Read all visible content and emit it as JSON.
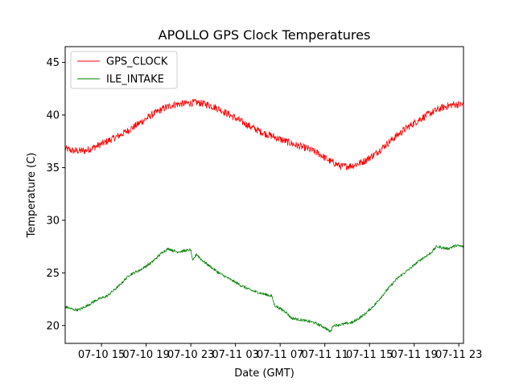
{
  "chart_data": {
    "type": "line",
    "title": "APOLLO GPS Clock Temperatures",
    "xlabel": "Date (GMT)",
    "ylabel": "Temperature (C)",
    "xlim": [
      "07-10 11:45",
      "07-11 23:25"
    ],
    "ylim": [
      18.3,
      46.5
    ],
    "yticks": [
      20,
      25,
      30,
      35,
      40,
      45
    ],
    "xticks": [
      {
        "t": "07-10 15:00",
        "label": "07-10 15"
      },
      {
        "t": "07-10 19:00",
        "label": "07-10 19"
      },
      {
        "t": "07-10 23:00",
        "label": "07-10 23"
      },
      {
        "t": "07-11 03:00",
        "label": "07-11 03"
      },
      {
        "t": "07-11 07:00",
        "label": "07-11 07"
      },
      {
        "t": "07-11 11:00",
        "label": "07-11 11"
      },
      {
        "t": "07-11 15:00",
        "label": "07-11 15"
      },
      {
        "t": "07-11 19:00",
        "label": "07-11 19"
      },
      {
        "t": "07-11 23:00",
        "label": "07-11 23"
      }
    ],
    "legend_position": "upper-left",
    "series": [
      {
        "name": "GPS_CLOCK",
        "color": "#ff0000",
        "noise": 0.35,
        "points": [
          [
            "07-10 11:45",
            36.8
          ],
          [
            "07-10 12:30",
            36.6
          ],
          [
            "07-10 13:30",
            36.6
          ],
          [
            "07-10 14:30",
            37.0
          ],
          [
            "07-10 15:30",
            37.5
          ],
          [
            "07-10 16:30",
            38.0
          ],
          [
            "07-10 17:30",
            38.6
          ],
          [
            "07-10 18:30",
            39.3
          ],
          [
            "07-10 19:30",
            40.0
          ],
          [
            "07-10 20:30",
            40.6
          ],
          [
            "07-10 21:30",
            41.0
          ],
          [
            "07-10 22:30",
            41.1
          ],
          [
            "07-10 23:30",
            41.2
          ],
          [
            "07-11 00:30",
            41.0
          ],
          [
            "07-11 01:30",
            40.6
          ],
          [
            "07-11 02:30",
            40.0
          ],
          [
            "07-11 03:30",
            39.4
          ],
          [
            "07-11 04:30",
            38.8
          ],
          [
            "07-11 05:30",
            38.3
          ],
          [
            "07-11 06:30",
            37.9
          ],
          [
            "07-11 07:30",
            37.5
          ],
          [
            "07-11 08:30",
            37.1
          ],
          [
            "07-11 09:30",
            36.8
          ],
          [
            "07-11 10:30",
            36.3
          ],
          [
            "07-11 11:30",
            35.6
          ],
          [
            "07-11 12:30",
            35.1
          ],
          [
            "07-11 13:30",
            35.2
          ],
          [
            "07-11 14:30",
            35.6
          ],
          [
            "07-11 15:30",
            36.3
          ],
          [
            "07-11 16:30",
            37.2
          ],
          [
            "07-11 17:30",
            38.1
          ],
          [
            "07-11 18:30",
            38.9
          ],
          [
            "07-11 19:30",
            39.6
          ],
          [
            "07-11 20:30",
            40.2
          ],
          [
            "07-11 21:30",
            40.7
          ],
          [
            "07-11 22:30",
            41.0
          ],
          [
            "07-11 23:25",
            41.0
          ]
        ]
      },
      {
        "name": "ILE_INTAKE",
        "color": "#008000",
        "noise": 0.12,
        "points": [
          [
            "07-10 11:45",
            21.8
          ],
          [
            "07-10 12:30",
            21.5
          ],
          [
            "07-10 13:00",
            21.5
          ],
          [
            "07-10 13:45",
            21.9
          ],
          [
            "07-10 14:30",
            22.4
          ],
          [
            "07-10 15:30",
            22.8
          ],
          [
            "07-10 16:30",
            23.7
          ],
          [
            "07-10 17:30",
            24.8
          ],
          [
            "07-10 18:30",
            25.3
          ],
          [
            "07-10 19:30",
            26.0
          ],
          [
            "07-10 20:30",
            27.0
          ],
          [
            "07-10 21:00",
            27.3
          ],
          [
            "07-10 21:45",
            27.0
          ],
          [
            "07-10 22:30",
            27.1
          ],
          [
            "07-10 23:00",
            27.2
          ],
          [
            "07-10 23:10",
            26.1
          ],
          [
            "07-10 23:30",
            26.8
          ],
          [
            "07-11 00:00",
            26.2
          ],
          [
            "07-11 00:30",
            25.8
          ],
          [
            "07-11 01:30",
            25.0
          ],
          [
            "07-11 02:30",
            24.4
          ],
          [
            "07-11 03:30",
            23.8
          ],
          [
            "07-11 04:30",
            23.3
          ],
          [
            "07-11 05:30",
            23.0
          ],
          [
            "07-11 06:15",
            22.8
          ],
          [
            "07-11 06:30",
            21.9
          ],
          [
            "07-11 07:30",
            21.3
          ],
          [
            "07-11 08:00",
            20.7
          ],
          [
            "07-11 09:00",
            20.5
          ],
          [
            "07-11 10:00",
            20.3
          ],
          [
            "07-11 11:00",
            19.8
          ],
          [
            "07-11 11:30",
            19.4
          ],
          [
            "07-11 11:45",
            20.0
          ],
          [
            "07-11 12:30",
            20.1
          ],
          [
            "07-11 13:30",
            20.3
          ],
          [
            "07-11 14:30",
            21.0
          ],
          [
            "07-11 15:30",
            22.0
          ],
          [
            "07-11 16:30",
            23.3
          ],
          [
            "07-11 17:30",
            24.5
          ],
          [
            "07-11 18:30",
            25.3
          ],
          [
            "07-11 19:30",
            26.2
          ],
          [
            "07-11 20:30",
            26.9
          ],
          [
            "07-11 21:00",
            27.5
          ],
          [
            "07-11 22:00",
            27.3
          ],
          [
            "07-11 22:45",
            27.6
          ],
          [
            "07-11 23:25",
            27.5
          ]
        ]
      }
    ]
  }
}
